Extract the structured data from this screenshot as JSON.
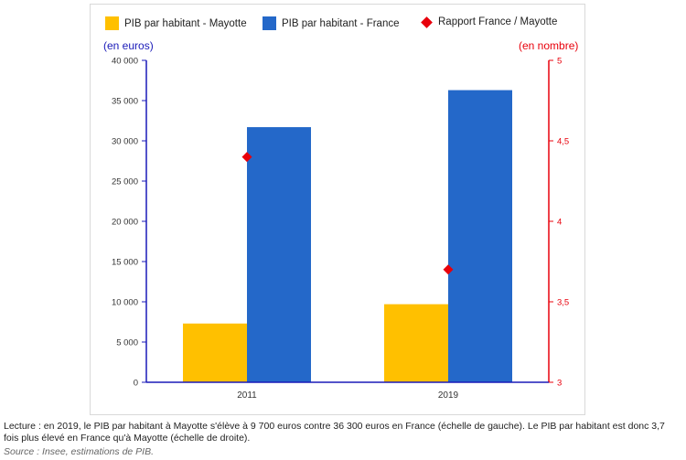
{
  "chart_data": {
    "type": "bar",
    "categories": [
      "2011",
      "2019"
    ],
    "series": [
      {
        "name": "PIB par habitant - Mayotte",
        "values": [
          7300,
          9700
        ],
        "color": "#ffc000",
        "axis": "left",
        "kind": "bar"
      },
      {
        "name": "PIB par habitant - France",
        "values": [
          31700,
          36300
        ],
        "color": "#2468c9",
        "axis": "left",
        "kind": "bar"
      },
      {
        "name": "Rapport France / Mayotte",
        "values": [
          4.4,
          3.7
        ],
        "color": "#e8000b",
        "axis": "right",
        "kind": "marker"
      }
    ],
    "left_axis": {
      "unit_label": "(en euros)",
      "ylim": [
        0,
        40000
      ],
      "ticks": [
        0,
        5000,
        10000,
        15000,
        20000,
        25000,
        30000,
        35000,
        40000
      ],
      "tick_labels": [
        "0",
        "5 000",
        "10 000",
        "15 000",
        "20 000",
        "25 000",
        "30 000",
        "35 000",
        "40 000"
      ],
      "color": "#1a1ab8"
    },
    "right_axis": {
      "unit_label": "(en nombre)",
      "ylim": [
        3,
        5
      ],
      "ticks": [
        3,
        3.5,
        4,
        4.5,
        5
      ],
      "tick_labels": [
        "3",
        "3,5",
        "4",
        "4,5",
        "5"
      ],
      "color": "#e8000b"
    },
    "grid": false,
    "legend_position": "top"
  },
  "footnote": "Lecture : en 2019, le PIB par habitant à Mayotte s'élève à 9 700 euros contre 36 300 euros en France (échelle de gauche). Le PIB par habitant est donc 3,7 fois plus élevé en France qu'à Mayotte (échelle de droite).",
  "source": "Source : Insee, estimations de PIB."
}
